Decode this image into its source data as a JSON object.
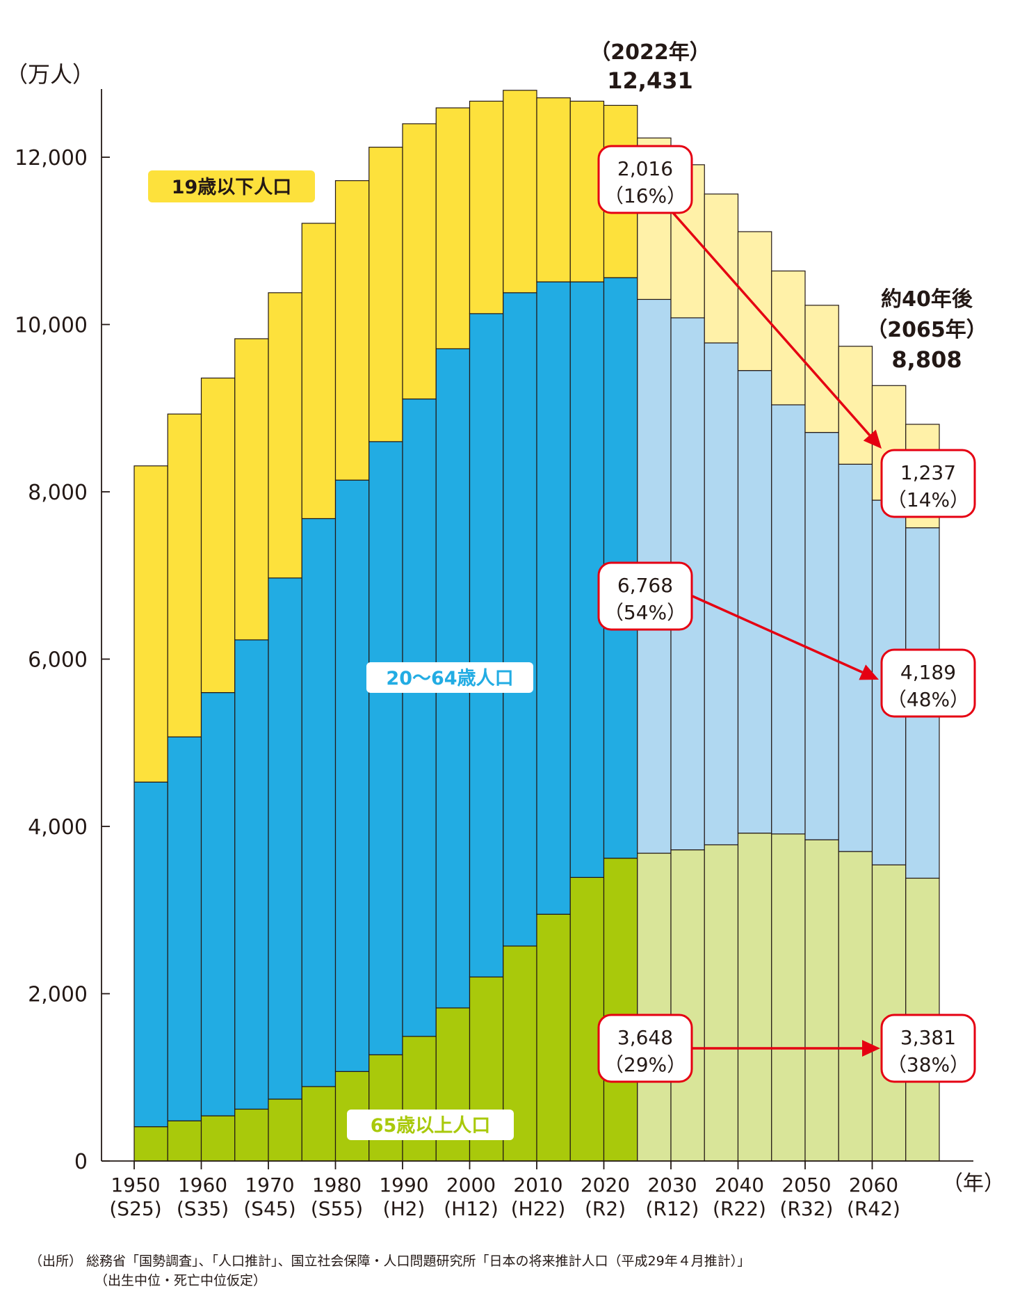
{
  "chart_data": {
    "type": "bar",
    "stacked": true,
    "y_unit_label": "（万人）",
    "x_unit_label": "（年）",
    "ylim": [
      0,
      12800
    ],
    "y_ticks": [
      0,
      2000,
      4000,
      6000,
      8000,
      10000,
      12000
    ],
    "y_tick_labels": [
      "0",
      "2,000",
      "4,000",
      "6,000",
      "8,000",
      "10,000",
      "12,000"
    ],
    "x_ticks": [
      {
        "year": "1950",
        "era": "(S25)",
        "bar_index": 0
      },
      {
        "year": "1960",
        "era": "(S35)",
        "bar_index": 2
      },
      {
        "year": "1970",
        "era": "(S45)",
        "bar_index": 4
      },
      {
        "year": "1980",
        "era": "(S55)",
        "bar_index": 6
      },
      {
        "year": "1990",
        "era": "(H2)",
        "bar_index": 8
      },
      {
        "year": "2000",
        "era": "(H12)",
        "bar_index": 10
      },
      {
        "year": "2010",
        "era": "(H22)",
        "bar_index": 12
      },
      {
        "year": "2020",
        "era": "(R2)",
        "bar_index": 14
      },
      {
        "year": "2030",
        "era": "(R12)",
        "bar_index": 16
      },
      {
        "year": "2040",
        "era": "(R22)",
        "bar_index": 18
      },
      {
        "year": "2050",
        "era": "(R32)",
        "bar_index": 20
      },
      {
        "year": "2060",
        "era": "(R42)",
        "bar_index": 22
      }
    ],
    "categories": [
      "1950",
      "1955",
      "1960",
      "1965",
      "1970",
      "1975",
      "1980",
      "1985",
      "1990",
      "1995",
      "2000",
      "2005",
      "2010",
      "2015",
      "2020",
      "2025",
      "2030",
      "2035",
      "2040",
      "2045",
      "2050",
      "2055",
      "2060",
      "2065"
    ],
    "projected_from_index": 15,
    "series": [
      {
        "name": "65歳以上人口",
        "color": "#a9c90b",
        "projected_color": "#d9e599",
        "values": [
          410,
          480,
          540,
          620,
          740,
          890,
          1070,
          1270,
          1490,
          1830,
          2200,
          2570,
          2950,
          3390,
          3620,
          3680,
          3720,
          3780,
          3920,
          3910,
          3840,
          3700,
          3540,
          3381
        ]
      },
      {
        "name": "20〜64歳人口",
        "color": "#22ace3",
        "projected_color": "#b0d8f1",
        "values": [
          4120,
          4590,
          5060,
          5610,
          6230,
          6790,
          7070,
          7330,
          7620,
          7880,
          7930,
          7810,
          7560,
          7120,
          6940,
          6620,
          6360,
          6000,
          5530,
          5130,
          4870,
          4630,
          4360,
          4189
        ]
      },
      {
        "name": "19歳以下人口",
        "color": "#fde13c",
        "projected_color": "#fff1a8",
        "values": [
          3780,
          3860,
          3760,
          3600,
          3410,
          3530,
          3580,
          3520,
          3290,
          2880,
          2540,
          2420,
          2200,
          2160,
          2060,
          1930,
          1830,
          1780,
          1660,
          1600,
          1520,
          1410,
          1370,
          1237
        ]
      }
    ],
    "series_labels": {
      "under19": "19歳以下人口",
      "age20_64": "20〜64歳人口",
      "over65": "65歳以上人口"
    },
    "annotations": {
      "year_2022_title": "（2022年）",
      "year_2022_total": "12,431",
      "year_2065_title1": "約40年後",
      "year_2065_title2": "（2065年）",
      "year_2065_total": "8,808",
      "under19_2022": {
        "value": "2,016",
        "pct": "（16%）"
      },
      "under19_2065": {
        "value": "1,237",
        "pct": "（14%）"
      },
      "working_2022": {
        "value": "6,768",
        "pct": "（54%）"
      },
      "working_2065": {
        "value": "4,189",
        "pct": "（48%）"
      },
      "elderly_2022": {
        "value": "3,648",
        "pct": "（29%）"
      },
      "elderly_2065": {
        "value": "3,381",
        "pct": "（38%）"
      }
    }
  },
  "source": {
    "line1": "（出所） 総務省「国勢調査」、「人口推計」、国立社会保障・人口問題研究所「日本の将来推計人口（平成29年４月推計）」",
    "line2": "（出生中位・死亡中位仮定）"
  },
  "colors": {
    "arrow": "#e50012",
    "axis": "#231815"
  }
}
